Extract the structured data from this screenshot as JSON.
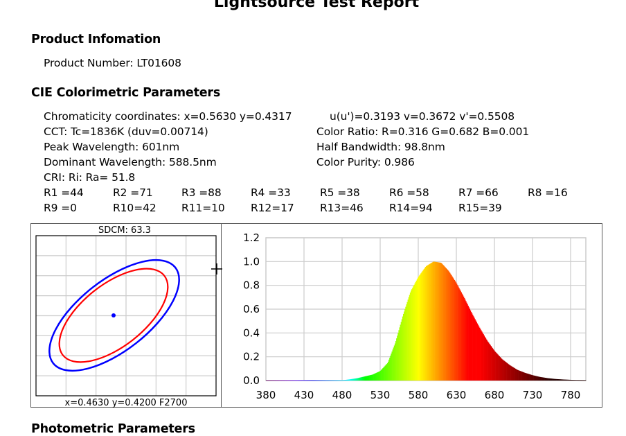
{
  "report": {
    "title": "Lightsource Test Report",
    "product_section": {
      "heading": "Product Infomation",
      "product_number": "Product Number: LT01608"
    },
    "cie_section": {
      "heading": "CIE Colorimetric Parameters",
      "chromaticity": "Chromaticity coordinates: x=0.5630 y=0.4317",
      "uv": "u(u')=0.3193 v=0.3672 v'=0.5508",
      "cct": "CCT: Tc=1836K (duv=0.00714)",
      "color_ratio": "Color Ratio: R=0.316  G=0.682  B=0.001",
      "peak_wavelength": "Peak Wavelength: 601nm",
      "half_bandwidth": "Half Bandwidth: 98.8nm",
      "dominant_wavelength": "Dominant Wavelength: 588.5nm",
      "color_purity": "Color Purity: 0.986",
      "cri": "CRI: Ri: Ra= 51.8",
      "ri_row1": [
        "R1 =44",
        "R2 =71",
        "R3 =88",
        "R4 =33",
        "R5 =38",
        "R6 =58",
        "R7 =66",
        "R8 =16"
      ],
      "ri_row2": [
        "R9 =0",
        "R10=42",
        "R11=10",
        "R12=17",
        "R13=46",
        "R14=94",
        "R15=39"
      ]
    },
    "photometric_section": {
      "heading": "Photometric Parameters"
    }
  },
  "sdcm_panel": {
    "label": "SDCM:  63.3",
    "footer": "x=0.4630 y=0.4200 F2700",
    "ellipse_colors": {
      "outer": "#0000ff",
      "inner": "#ff0000",
      "point": "#0000ff"
    }
  },
  "chart_data": {
    "type": "area",
    "title": "",
    "xlabel": "",
    "ylabel": "",
    "xlim": [
      380,
      800
    ],
    "ylim": [
      0,
      1.2
    ],
    "grid": true,
    "fill": "wavelength-colored spectrum",
    "x_ticks": [
      "380",
      "430",
      "480",
      "530",
      "580",
      "630",
      "680",
      "730",
      "780"
    ],
    "y_ticks": [
      "0.0",
      "0.2",
      "0.4",
      "0.6",
      "0.8",
      "1.0",
      "1.2"
    ],
    "x": [
      380,
      400,
      420,
      440,
      460,
      480,
      490,
      500,
      510,
      520,
      530,
      540,
      550,
      560,
      570,
      580,
      590,
      600,
      610,
      620,
      630,
      640,
      650,
      660,
      670,
      680,
      690,
      700,
      710,
      720,
      730,
      740,
      750,
      760,
      770,
      780,
      790,
      800
    ],
    "values": [
      0.003,
      0.003,
      0.003,
      0.003,
      0.002,
      0.002,
      0.01,
      0.02,
      0.035,
      0.05,
      0.08,
      0.15,
      0.32,
      0.55,
      0.75,
      0.87,
      0.96,
      1.0,
      0.99,
      0.92,
      0.82,
      0.7,
      0.57,
      0.45,
      0.34,
      0.25,
      0.18,
      0.13,
      0.09,
      0.065,
      0.045,
      0.03,
      0.02,
      0.013,
      0.009,
      0.006,
      0.004,
      0.003
    ]
  }
}
